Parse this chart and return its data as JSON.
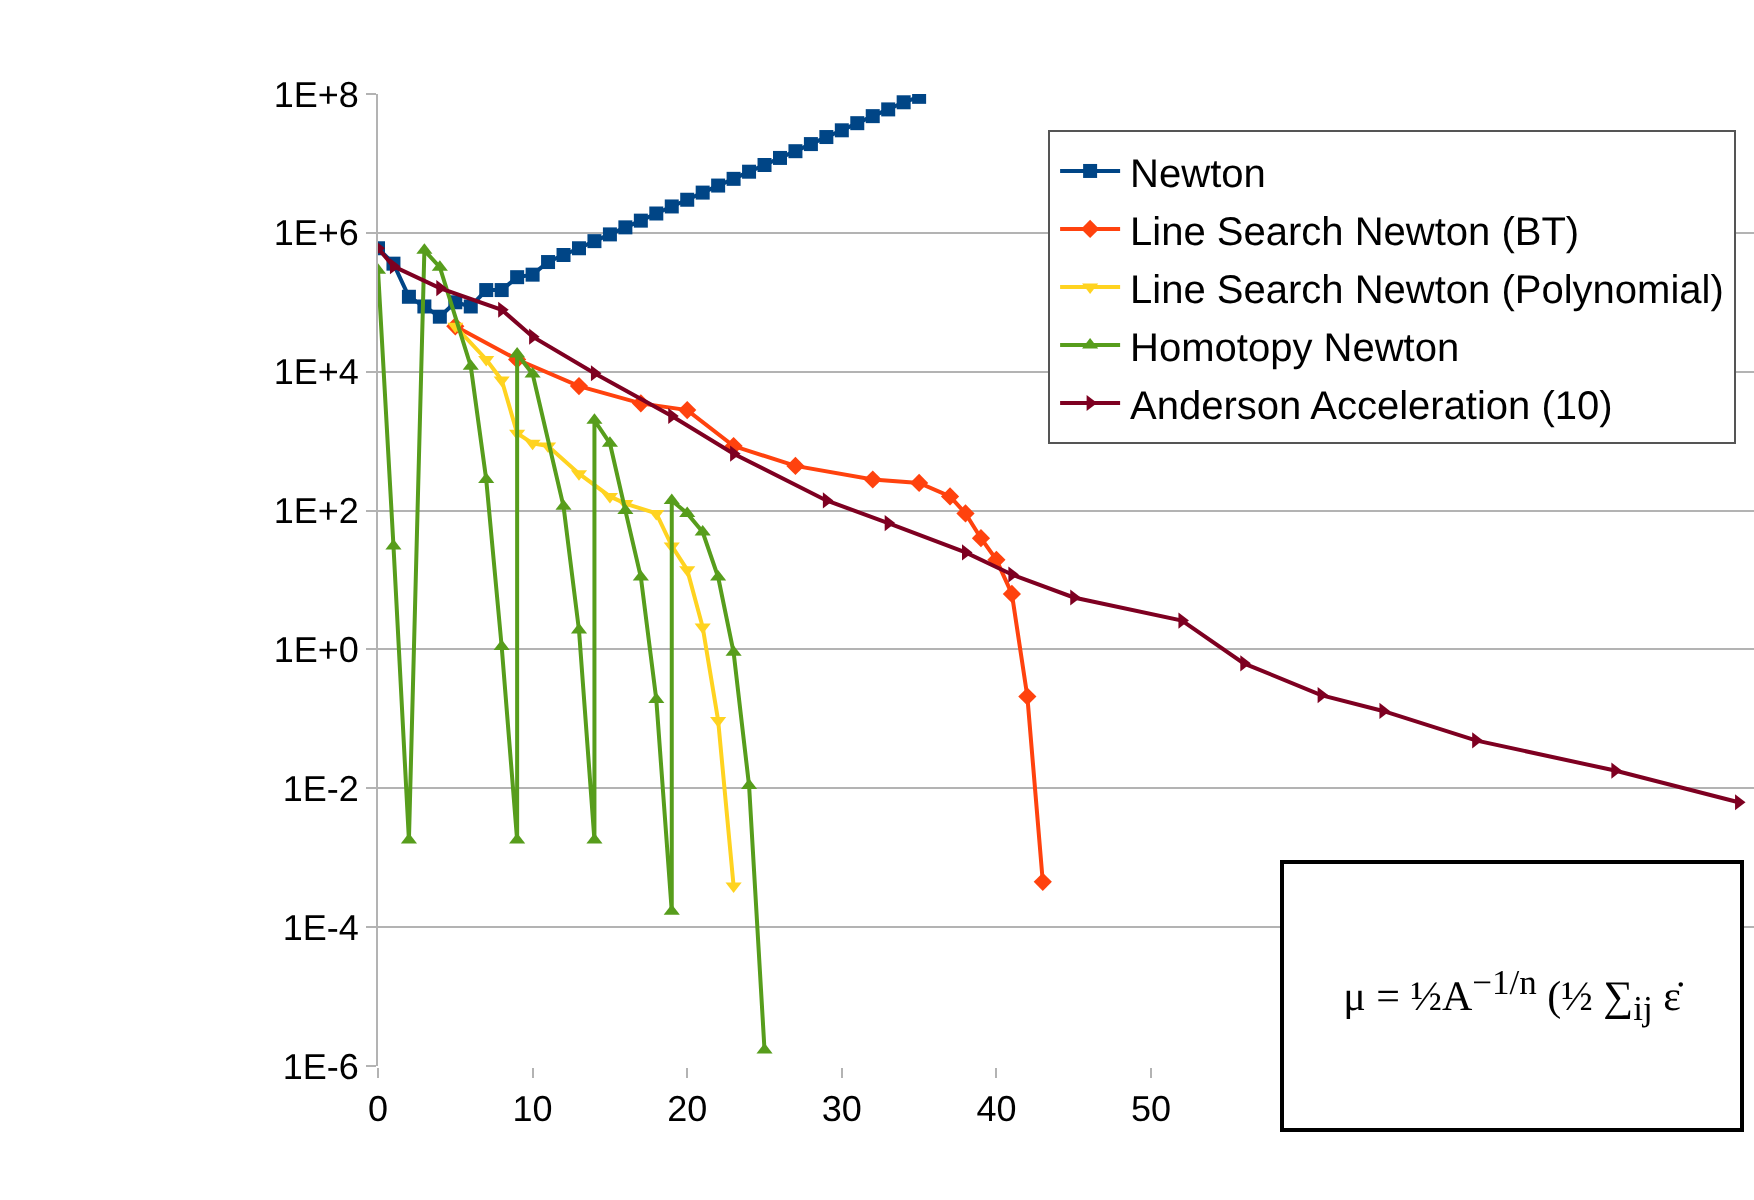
{
  "chart_data": {
    "type": "line",
    "log": "y",
    "grid": "y",
    "legend": "top right",
    "line_style": "solid",
    "xlim": [
      0,
      89
    ],
    "xticks": [
      0,
      10,
      20,
      30,
      40,
      50
    ],
    "ylim": [
      1e-06,
      100000000.0
    ],
    "yticks": [
      {
        "value": 100000000.0,
        "label": "1E+8"
      },
      {
        "value": 1000000.0,
        "label": "1E+6"
      },
      {
        "value": 10000.0,
        "label": "1E+4"
      },
      {
        "value": 100,
        "label": "1E+2"
      },
      {
        "value": 1,
        "label": "1E+0"
      },
      {
        "value": 0.01,
        "label": "1E-2"
      },
      {
        "value": 0.0001,
        "label": "1E-4"
      },
      {
        "value": 1e-06,
        "label": "1E-6"
      }
    ],
    "annotations": [
      "μ = ½A$^{−1/n}$ (½ ∑$_{ij}$ ε̇"
    ],
    "series": [
      {
        "name": "Newton",
        "color": "#004586",
        "marker": "square",
        "x": [
          0,
          1,
          2,
          3,
          4,
          5,
          6,
          7,
          8,
          9,
          10,
          11,
          12,
          13,
          14,
          15,
          16,
          17,
          18,
          19,
          20,
          21,
          22,
          23,
          24,
          25,
          26,
          27,
          28,
          29,
          30,
          31,
          32,
          33,
          34,
          35
        ],
        "values": [
          600000.0,
          360000.0,
          120000.0,
          87000.0,
          62000.0,
          100000.0,
          87000.0,
          150000.0,
          150000.0,
          230000.0,
          250000.0,
          380000.0,
          480000.0,
          600000.0,
          760000.0,
          950000.0,
          1200000.0,
          1500000.0,
          1900000.0,
          2400000.0,
          3000000.0,
          3800000.0,
          4800000.0,
          6000000.0,
          7600000.0,
          9500000.0,
          12000000.0,
          15000000.0,
          19000000.0,
          24000000.0,
          30000000.0,
          38000000.0,
          48000000.0,
          60000000.0,
          76000000.0,
          91000000.0
        ]
      },
      {
        "name": "Line Search Newton (BT)",
        "color": "#ff420e",
        "marker": "diamond",
        "x": [
          5,
          9,
          13,
          17,
          20,
          23,
          27,
          32,
          35,
          37,
          38,
          39,
          40,
          41,
          42,
          43
        ],
        "values": [
          45000.0,
          15000.0,
          6200,
          3500,
          2800,
          850,
          440,
          280,
          250,
          160,
          91,
          40,
          19.5,
          6.3,
          0.21,
          0.00045
        ]
      },
      {
        "name": "Line Search Newton (Polynomial)",
        "color": "#ffd320",
        "marker": "triangle-down",
        "x": [
          5,
          7,
          8,
          9,
          10,
          11,
          13,
          15,
          16,
          18,
          19,
          20,
          21,
          22,
          23
        ],
        "values": [
          45000.0,
          15000.0,
          7600,
          1300,
          930,
          850,
          340,
          160,
          126,
          91,
          31,
          14,
          2.1,
          0.095,
          0.00039
        ]
      },
      {
        "name": "Homotopy Newton",
        "color": "#579d1c",
        "marker": "triangle",
        "x": [
          0,
          1,
          2,
          3,
          4,
          6,
          7,
          8,
          9,
          9,
          10,
          12,
          13,
          14,
          14,
          15,
          16,
          17,
          18,
          19,
          19,
          20,
          21,
          22,
          23,
          24,
          25
        ],
        "values": [
          290000.0,
          31,
          0.0018,
          560000.0,
          320000.0,
          12000.0,
          280,
          1.1,
          0.0018,
          18000.0,
          9300,
          115,
          1.9,
          0.0018,
          2000,
          930,
          100,
          11,
          0.19,
          0.00017,
          140,
          91,
          49,
          11,
          0.91,
          0.011,
          1.7e-06
        ]
      },
      {
        "name": "Anderson Acceleration (10)",
        "color": "#7e0021",
        "marker": "triangle-right",
        "x": [
          0,
          1,
          4,
          8,
          10,
          14,
          19,
          23,
          29,
          33,
          38,
          41,
          45,
          52,
          56,
          61,
          65,
          71,
          80,
          88
        ],
        "values": [
          600000.0,
          330000.0,
          160000.0,
          78000.0,
          32000.0,
          9500,
          2300,
          660,
          140,
          66,
          25,
          12,
          5.6,
          2.6,
          0.63,
          0.22,
          0.13,
          0.049,
          0.018,
          0.0063
        ]
      }
    ]
  }
}
